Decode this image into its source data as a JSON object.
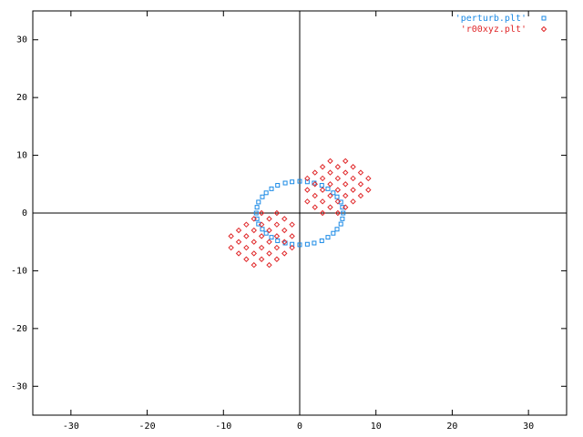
{
  "chart_data": {
    "type": "scatter",
    "xlim": [
      -35,
      35
    ],
    "ylim": [
      -35,
      35
    ],
    "xticks": [
      -30,
      -20,
      -10,
      0,
      10,
      20,
      30
    ],
    "yticks": [
      -30,
      -20,
      -10,
      0,
      10,
      20,
      30
    ],
    "legend": "top-right",
    "series": [
      {
        "name": "'perturb.plt'",
        "color": "#1a8ae6",
        "marker": "square",
        "x": [
          5.7,
          5.6,
          5.4,
          4.9,
          4.4,
          3.7,
          2.9,
          1.9,
          1.0,
          0,
          -1.0,
          -1.9,
          -2.9,
          -3.7,
          -4.4,
          -4.9,
          -5.4,
          -5.6,
          -5.7,
          -5.6,
          -5.4,
          -4.9,
          -4.4,
          -3.7,
          -2.9,
          -1.9,
          -1.0,
          0,
          1.0,
          1.9,
          2.9,
          3.7,
          4.4,
          4.9,
          5.4,
          5.6
        ],
        "values": [
          0,
          1.0,
          1.9,
          2.8,
          3.5,
          4.2,
          4.8,
          5.2,
          5.4,
          5.5,
          5.4,
          5.2,
          4.8,
          4.2,
          3.5,
          2.8,
          1.9,
          1.0,
          0,
          -1.0,
          -1.9,
          -2.8,
          -3.5,
          -4.2,
          -4.8,
          -5.2,
          -5.4,
          -5.5,
          -5.4,
          -5.2,
          -4.8,
          -4.2,
          -3.5,
          -2.8,
          -1.9,
          -1.0
        ]
      },
      {
        "name": "'r00xyz.plt'",
        "color": "#e0282a",
        "marker": "diamond",
        "x": [
          1,
          1,
          1,
          2,
          2,
          2,
          2,
          3,
          3,
          3,
          3,
          3,
          4,
          4,
          4,
          4,
          4,
          5,
          5,
          5,
          5,
          5,
          6,
          6,
          6,
          6,
          6,
          7,
          7,
          7,
          7,
          8,
          8,
          8,
          9,
          9,
          -1,
          -1,
          -1,
          -2,
          -2,
          -2,
          -2,
          -3,
          -3,
          -3,
          -3,
          -3,
          -4,
          -4,
          -4,
          -4,
          -4,
          -5,
          -5,
          -5,
          -5,
          -5,
          -6,
          -6,
          -6,
          -6,
          -6,
          -7,
          -7,
          -7,
          -7,
          -8,
          -8,
          -8,
          -9,
          -9
        ],
        "values": [
          2,
          4,
          6,
          1,
          3,
          5,
          7,
          0,
          2,
          4,
          6,
          8,
          1,
          3,
          5,
          7,
          9,
          0,
          2,
          4,
          6,
          8,
          1,
          3,
          5,
          7,
          9,
          2,
          4,
          6,
          8,
          3,
          5,
          7,
          4,
          6,
          -2,
          -4,
          -6,
          -1,
          -3,
          -5,
          -7,
          0,
          -2,
          -4,
          -6,
          -8,
          -1,
          -3,
          -5,
          -7,
          -9,
          0,
          -2,
          -4,
          -6,
          -8,
          -1,
          -3,
          -5,
          -7,
          -9,
          -2,
          -4,
          -6,
          -8,
          -3,
          -5,
          -7,
          -4,
          -6
        ]
      }
    ]
  }
}
